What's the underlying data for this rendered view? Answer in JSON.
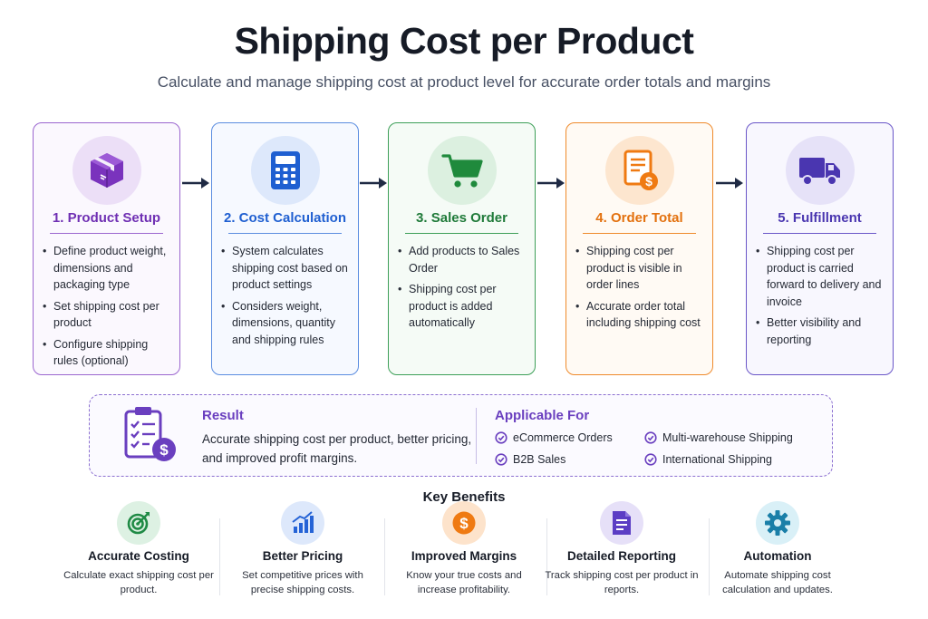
{
  "title": "Shipping Cost per Product",
  "subtitle": "Calculate and manage shipping cost at product level for accurate order totals and margins",
  "steps": [
    {
      "icon": "box-icon",
      "color": "#6f2fb3",
      "title": "1. Product Setup",
      "bullets": [
        "Define product weight, dimensions and packaging type",
        "Set shipping cost per product",
        "Configure shipping rules (optional)"
      ]
    },
    {
      "icon": "calculator-icon",
      "color": "#1f5fd1",
      "title": "2. Cost Calculation",
      "bullets": [
        "System calculates shipping cost based on product settings",
        "Considers weight, dimensions, quantity and shipping rules"
      ]
    },
    {
      "icon": "cart-icon",
      "color": "#1f7a39",
      "title": "3. Sales Order",
      "bullets": [
        "Add products to Sales Order",
        "Shipping cost per product is added automatically"
      ]
    },
    {
      "icon": "invoice-icon",
      "color": "#e3710f",
      "title": "4. Order Total",
      "bullets": [
        "Shipping cost per product is visible in order lines",
        "Accurate order total including shipping cost"
      ]
    },
    {
      "icon": "truck-icon",
      "color": "#4a36b0",
      "title": "5. Fulfillment",
      "bullets": [
        "Shipping cost per product is carried forward to delivery and invoice",
        "Better visibility and reporting"
      ]
    }
  ],
  "result": {
    "icon": "checklist-dollar-icon",
    "title": "Result",
    "text": "Accurate shipping cost per product, better pricing, and improved profit margins."
  },
  "applicable": {
    "title": "Applicable For",
    "items": [
      "eCommerce Orders",
      "Multi-warehouse Shipping",
      "B2B Sales",
      "International Shipping"
    ]
  },
  "key_benefits": {
    "title": "Key Benefits",
    "items": [
      {
        "icon": "target-icon",
        "color": "#1f8a45",
        "title": "Accurate Costing",
        "desc": "Calculate exact shipping cost per product."
      },
      {
        "icon": "bar-chart-icon",
        "color": "#2563d6",
        "title": "Better Pricing",
        "desc": "Set competitive prices with precise shipping costs."
      },
      {
        "icon": "dollar-coin-icon",
        "color": "#ef7a12",
        "title": "Improved Margins",
        "desc": "Know your true costs and increase profitability."
      },
      {
        "icon": "report-icon",
        "color": "#5b3dc4",
        "title": "Detailed Reporting",
        "desc": "Track shipping cost per product in reports."
      },
      {
        "icon": "gear-icon",
        "color": "#1a7fa8",
        "title": "Automation",
        "desc": "Automate shipping cost calculation and updates."
      }
    ]
  }
}
